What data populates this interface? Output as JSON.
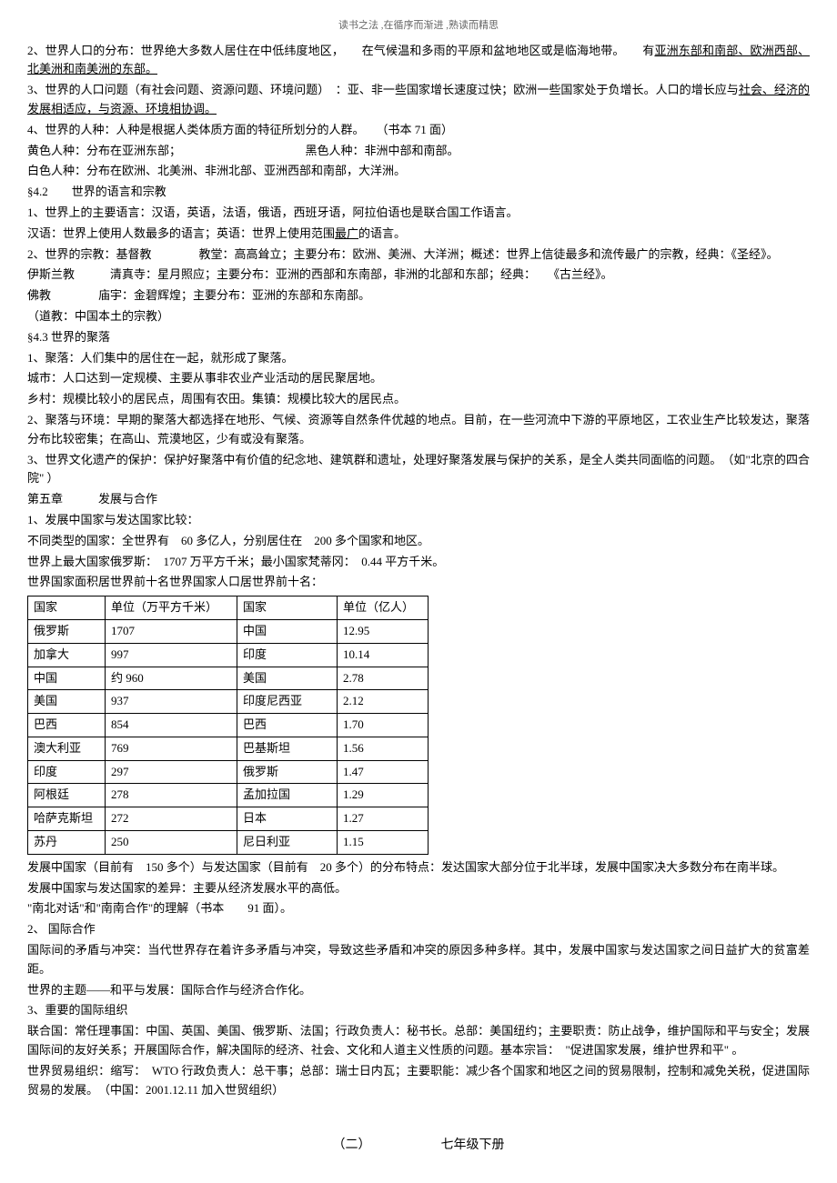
{
  "header_note": "读书之法 ,在循序而渐进 ,熟读而精思",
  "paragraphs": {
    "p1_prefix": "2、世界人口的分布：世界绝大多数人居住在中低纬度地区，　　在气候温和多雨的平原和盆地地区或是临海地带。　　有",
    "p1_underline": "亚洲东部和南部、欧洲西部、北美洲和南美洲的东部。",
    "p2": "3、世界的人口问题（有社会问题、资源问题、环境问题）　：亚、非一些国家增长速度过快；欧洲一些国家处于负增长。人口的增长应与",
    "p2_underline": "社会、经济的发展相适应，与资源、环境相协调。",
    "p3": "4、世界的人种：人种是根据人类体质方面的特征所划分的人群。　　（书本 71 面）",
    "p4": "黄色人种：分布在亚洲东部；　　　　　　　　　　　黑色人种：非洲中部和南部。",
    "p5": "白色人种：分布在欧洲、北美洲、非洲北部、亚洲西部和南部，大洋洲。",
    "s42": "§4.2　　世界的语言和宗教",
    "p6": "1、世界上的主要语言：汉语，英语，法语，俄语，西班牙语，阿拉伯语也是联合国工作语言。",
    "p7": "汉语：世界上使用人数最多的语言；英语：世界上使用范围",
    "p7_underline": "最广",
    "p7_suffix": "的语言。",
    "p8": "2、世界的宗教：基督教　　　　教堂：高高耸立；主要分布：欧洲、美洲、大洋洲；概述：世界上信徒最多和流传最广的宗教，经典：《圣经》。",
    "p9": "伊斯兰教　　　清真寺：星月照应；主要分布：亚洲的西部和东南部，非洲的北部和东部；经典：　　《古兰经》。",
    "p10": "佛教　　　　庙宇：金碧辉煌；主要分布：亚洲的东部和东南部。",
    "p11": "（道教：中国本土的宗教）",
    "s43": "§4.3 世界的聚落",
    "p12": "1、聚落：人们集中的居住在一起，就形成了聚落。",
    "p13": "城市：人口达到一定规模、主要从事非农业产业活动的居民聚居地。",
    "p14": "乡村：规模比较小的居民点，周围有农田。集镇：规模比较大的居民点。",
    "p15": "2、聚落与环境：早期的聚落大都选择在地形、气候、资源等自然条件优越的地点。目前，在一些河流中下游的平原地区，工农业生产比较发达，聚落分布比较密集；在高山、荒漠地区，少有或没有聚落。",
    "p16": "3、世界文化遗产的保护：保护好聚落中有价值的纪念地、建筑群和遗址，处理好聚落发展与保护的关系，是全人类共同面临的问题。　（如\"北京的四合院\" ）",
    "ch5": "第五章　　　发展与合作",
    "p17": "1、发展中国家与发达国家比较：",
    "p18": "不同类型的国家：全世界有　60 多亿人，分别居住在　200 多个国家和地区。",
    "p19": "世界上最大国家俄罗斯：　1707 万平方千米；最小国家梵蒂冈：　0.44 平方千米。",
    "p20": "世界国家面积居世界前十名世界国家人口居世界前十名：",
    "p21": "发展中国家（目前有　150 多个）与发达国家（目前有　20 多个）的分布特点：发达国家大部分位于北半球，发展中国家决大多数分布在南半球。",
    "p22": "发展中国家与发达国家的差异：主要从经济发展水平的高低。",
    "p23": "\"南北对话\"和\"南南合作\"的理解（书本　　91 面）。",
    "p24": "2、 国际合作",
    "p25": "国际间的矛盾与冲突：当代世界存在着许多矛盾与冲突，导致这些矛盾和冲突的原因多种多样。其中，发展中国家与发达国家之间日益扩大的贫富差距。",
    "p26": "世界的主题——和平与发展：国际合作与经济合作化。",
    "p27": "3、重要的国际组织",
    "p28": "联合国：常任理事国：中国、英国、美国、俄罗斯、法国；行政负责人：秘书长。总部：美国纽约；主要职责：防止战争，维护国际和平与安全；发展国际间的友好关系；开展国际合作，解决国际的经济、社会、文化和人道主义性质的问题。基本宗旨：　\"促进国家发展，维护世界和平\" 。",
    "p29": "世界贸易组织：缩写：　WTO 行政负责人：总干事；总部：瑞士日内瓦；主要职能：减少各个国家和地区之间的贸易限制，控制和减免关税，促进国际贸易的发展。　（中国：2001.12.11 加入世贸组织）",
    "book_title": "（二）　　　　　　七年级下册"
  },
  "table": {
    "header": [
      "国家",
      "单位（万平方千米）",
      "国家",
      "单位（亿人）"
    ],
    "rows": [
      [
        "俄罗斯",
        "1707",
        "中国",
        "12.95"
      ],
      [
        "加拿大",
        "997",
        "印度",
        "10.14"
      ],
      [
        "中国",
        "约 960",
        "美国",
        "2.78"
      ],
      [
        "美国",
        "937",
        "印度尼西亚",
        "2.12"
      ],
      [
        "巴西",
        "854",
        "巴西",
        "1.70"
      ],
      [
        "澳大利亚",
        "769",
        "巴基斯坦",
        "1.56"
      ],
      [
        "印度",
        "297",
        "俄罗斯",
        "1.47"
      ],
      [
        "阿根廷",
        "278",
        "孟加拉国",
        "1.29"
      ],
      [
        "哈萨克斯坦",
        "272",
        "日本",
        "1.27"
      ],
      [
        "苏丹",
        "250",
        "尼日利亚",
        "1.15"
      ]
    ]
  }
}
